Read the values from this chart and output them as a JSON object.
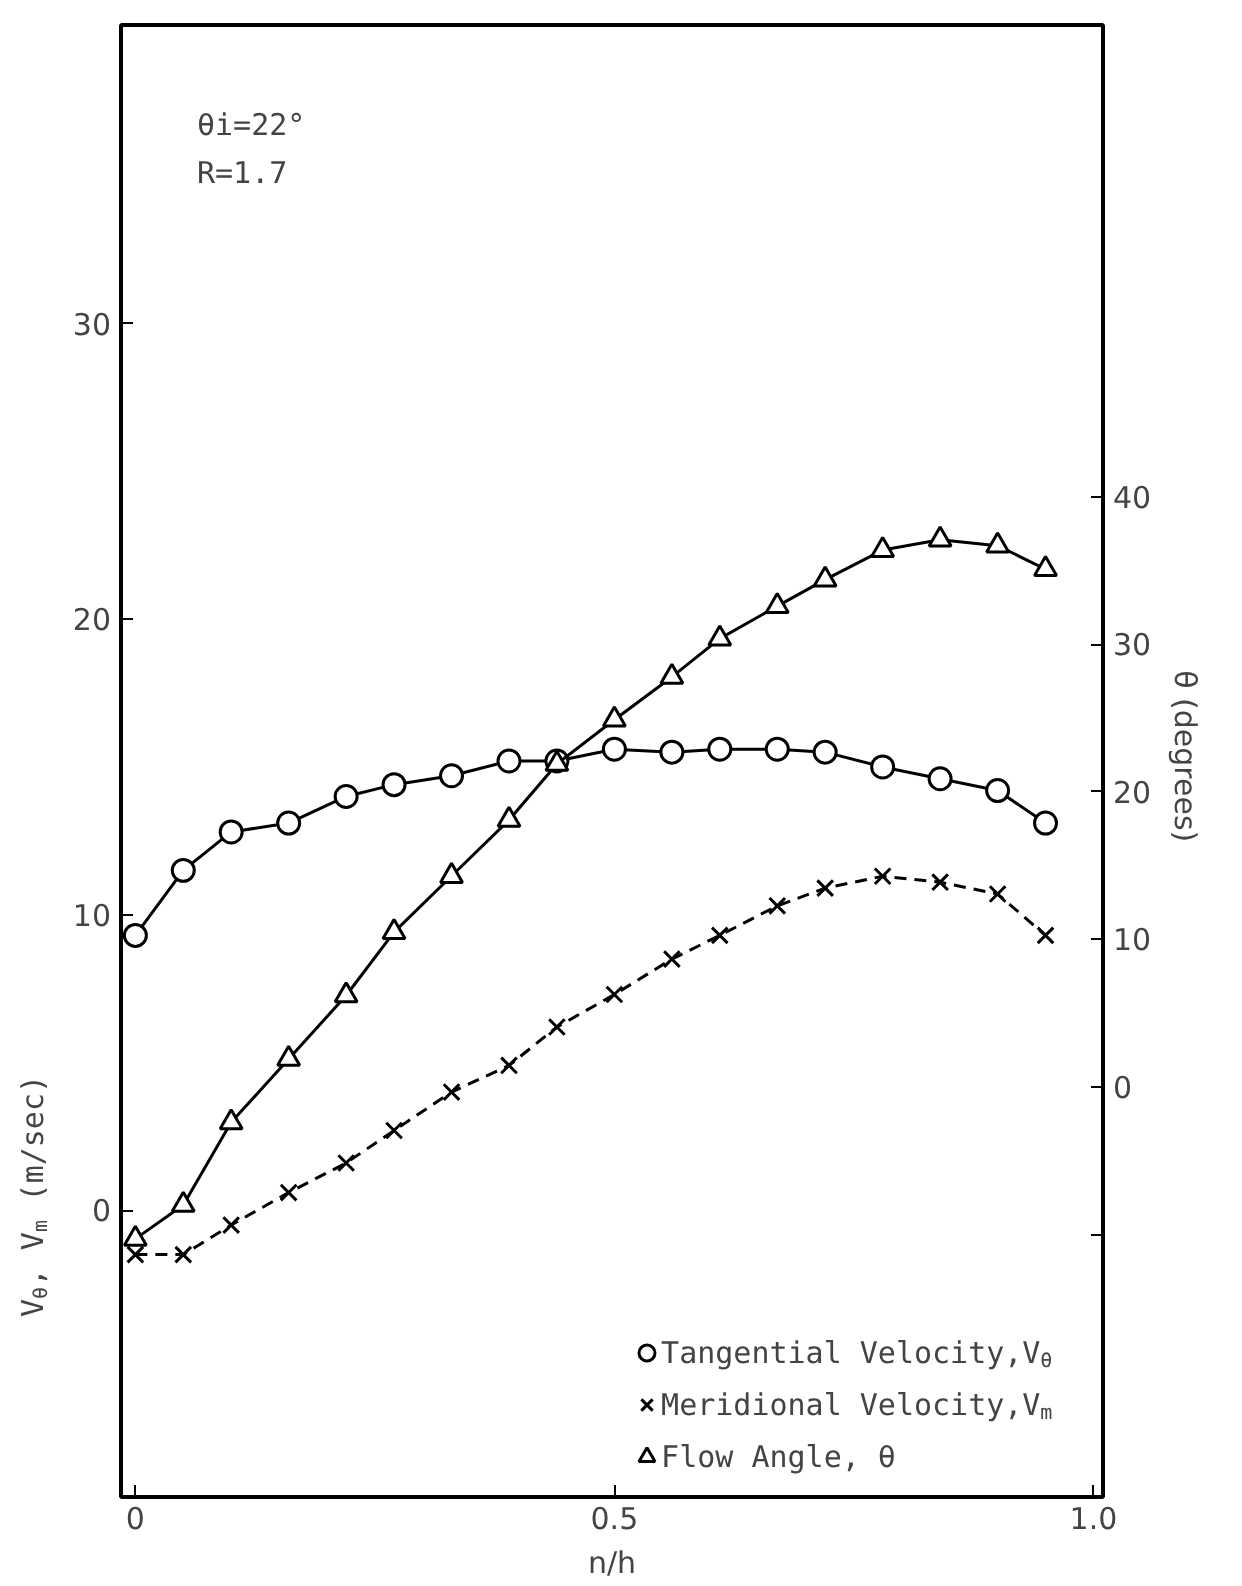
{
  "chart_data": {
    "type": "line",
    "xlabel": "n/h",
    "ylabel": "V$_{θ}$, V$_{m}$ (m/sec)",
    "y2label": "θ  (degrees)",
    "annotations": [
      "θi=22°",
      "R=1.7"
    ],
    "x": [
      0.0,
      0.05,
      0.1,
      0.16,
      0.22,
      0.27,
      0.33,
      0.39,
      0.44,
      0.5,
      0.56,
      0.61,
      0.67,
      0.72,
      0.78,
      0.84,
      0.9,
      0.95
    ],
    "xlim": [
      -0.015,
      1.01
    ],
    "xticks": [
      0,
      0.5,
      {
        "value": 1.0,
        "label": "1.0"
      }
    ],
    "ylim": [
      -9.7,
      40.1
    ],
    "yticks": [
      0,
      10,
      20,
      30
    ],
    "y2lim": [
      -27.8,
      72
    ],
    "y2ticks": [
      {
        "value": -10,
        "label": null
      },
      0,
      10,
      20,
      30,
      40
    ],
    "grid": false,
    "legend": "bottom right",
    "series": [
      {
        "name": "Tangential Velocity,V$_{θ}$",
        "color": "#000000",
        "marker": "circle",
        "line_style": "solid",
        "values": [
          9.3,
          11.5,
          12.8,
          13.1,
          14.0,
          14.4,
          14.7,
          15.2,
          15.2,
          15.6,
          15.5,
          15.6,
          15.6,
          15.5,
          15.0,
          14.6,
          14.2,
          13.1
        ]
      },
      {
        "name": "Meridional Velocity,V$_{m}$",
        "color": "#000000",
        "marker": "cross",
        "line_style": "dashed",
        "values": [
          -1.5,
          -1.5,
          -0.5,
          0.6,
          1.6,
          2.7,
          4.0,
          4.9,
          6.2,
          7.3,
          8.5,
          9.3,
          10.3,
          10.9,
          11.3,
          11.1,
          10.7,
          9.3
        ]
      },
      {
        "name": "Flow Angle, θ",
        "color": "#000000",
        "marker": "triangle",
        "line_style": "solid",
        "axis": "y2",
        "values": [
          -10.3,
          -8.0,
          -2.4,
          1.9,
          6.2,
          10.5,
          14.3,
          18.1,
          21.9,
          24.9,
          27.8,
          30.4,
          32.6,
          34.4,
          36.4,
          37.1,
          36.7,
          35.1
        ]
      }
    ]
  }
}
